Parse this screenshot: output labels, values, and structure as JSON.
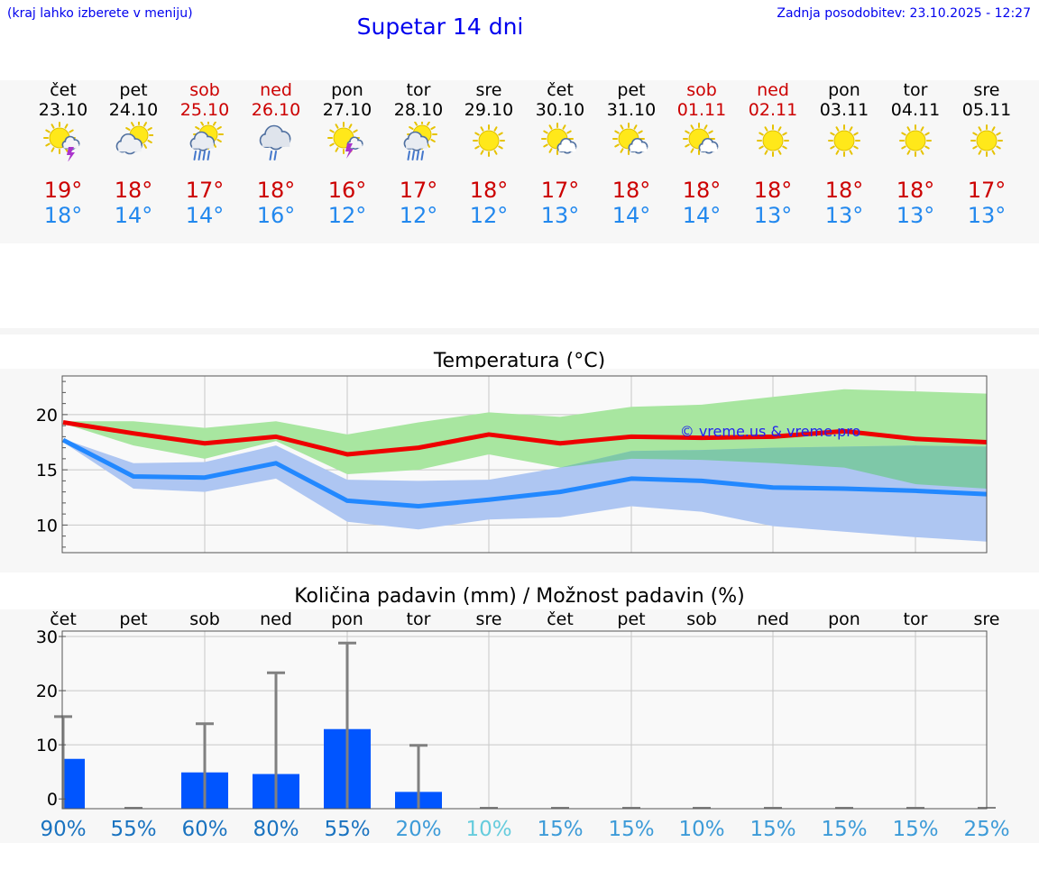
{
  "header": {
    "hint": "(kraj lahko izberete v meniju)",
    "title": "Supetar 14 dni",
    "updated": "Zadnja posodobitev: 23.10.2025 - 12:27"
  },
  "days": [
    {
      "name": "čet",
      "date": "23.10",
      "weekend": false,
      "icon": "sun-cloud-thunder-icon",
      "max": "19°",
      "min": "18°"
    },
    {
      "name": "pet",
      "date": "24.10",
      "weekend": false,
      "icon": "sun-behind-cloud-icon",
      "max": "18°",
      "min": "14°"
    },
    {
      "name": "sob",
      "date": "25.10",
      "weekend": true,
      "icon": "sun-cloud-rain-icon",
      "max": "17°",
      "min": "14°"
    },
    {
      "name": "ned",
      "date": "26.10",
      "weekend": true,
      "icon": "cloud-rain-icon",
      "max": "18°",
      "min": "16°"
    },
    {
      "name": "pon",
      "date": "27.10",
      "weekend": false,
      "icon": "sun-thunder-icon",
      "max": "16°",
      "min": "12°"
    },
    {
      "name": "tor",
      "date": "28.10",
      "weekend": false,
      "icon": "sun-cloud-rain-icon",
      "max": "17°",
      "min": "12°"
    },
    {
      "name": "sre",
      "date": "29.10",
      "weekend": false,
      "icon": "sun-icon",
      "max": "18°",
      "min": "12°"
    },
    {
      "name": "čet",
      "date": "30.10",
      "weekend": false,
      "icon": "sun-small-cloud-icon",
      "max": "17°",
      "min": "13°"
    },
    {
      "name": "pet",
      "date": "31.10",
      "weekend": false,
      "icon": "sun-small-cloud-icon",
      "max": "18°",
      "min": "14°"
    },
    {
      "name": "sob",
      "date": "01.11",
      "weekend": true,
      "icon": "sun-small-cloud-icon",
      "max": "18°",
      "min": "14°"
    },
    {
      "name": "ned",
      "date": "02.11",
      "weekend": true,
      "icon": "sun-icon",
      "max": "18°",
      "min": "13°"
    },
    {
      "name": "pon",
      "date": "03.11",
      "weekend": false,
      "icon": "sun-icon",
      "max": "18°",
      "min": "13°"
    },
    {
      "name": "tor",
      "date": "04.11",
      "weekend": false,
      "icon": "sun-icon",
      "max": "18°",
      "min": "13°"
    },
    {
      "name": "sre",
      "date": "05.11",
      "weekend": false,
      "icon": "sun-icon",
      "max": "17°",
      "min": "13°"
    }
  ],
  "colors": {
    "max_line": "#ee0000",
    "min_line": "#2288ff",
    "max_band": "#a8e6a0",
    "min_band": "#aec6f2",
    "overlap_band": "#7ec8a8",
    "precip_bar": "#0055ff",
    "error_bar": "#808080",
    "prob_high": "#1a73c0",
    "prob_mid": "#3d9bd8",
    "prob_low": "#66ccdd"
  },
  "chart_data": [
    {
      "type": "line",
      "title": "Temperatura (°C)",
      "watermark": "© vreme.us & vreme.pro",
      "x": [
        "23.10",
        "24.10",
        "25.10",
        "26.10",
        "27.10",
        "28.10",
        "29.10",
        "30.10",
        "31.10",
        "01.11",
        "02.11",
        "03.11",
        "04.11",
        "05.11"
      ],
      "ylim": [
        7.5,
        23.5
      ],
      "yticks": [
        10,
        15,
        20
      ],
      "grid": true,
      "series": [
        {
          "role": "max",
          "values": [
            19.3,
            18.3,
            17.4,
            18.0,
            16.4,
            17.0,
            18.2,
            17.4,
            18.0,
            17.9,
            18.0,
            18.5,
            17.8,
            17.5
          ]
        },
        {
          "role": "max_band_high",
          "values": [
            19.4,
            19.4,
            18.8,
            19.4,
            18.2,
            19.3,
            20.2,
            19.8,
            20.7,
            20.9,
            21.6,
            22.3,
            22.1,
            21.9
          ]
        },
        {
          "role": "max_band_low",
          "values": [
            19.2,
            17.2,
            16.0,
            17.6,
            14.6,
            15.0,
            16.4,
            15.2,
            16.0,
            15.9,
            15.6,
            15.2,
            13.7,
            13.3
          ]
        },
        {
          "role": "min",
          "values": [
            17.7,
            14.4,
            14.3,
            15.6,
            12.2,
            11.7,
            12.3,
            13.0,
            14.2,
            14.0,
            13.4,
            13.3,
            13.1,
            12.8
          ]
        },
        {
          "role": "min_band_high",
          "values": [
            17.8,
            15.6,
            15.7,
            17.2,
            14.1,
            14.0,
            14.1,
            15.2,
            16.7,
            16.8,
            17.0,
            17.1,
            17.2,
            17.1
          ]
        },
        {
          "role": "min_band_low",
          "values": [
            17.5,
            13.3,
            13.0,
            14.2,
            10.3,
            9.6,
            10.5,
            10.7,
            11.7,
            11.2,
            9.9,
            9.4,
            8.9,
            8.5
          ]
        }
      ]
    },
    {
      "type": "bar",
      "title": "Količina padavin (mm) / Možnost padavin (%)",
      "categories": [
        "čet",
        "pet",
        "sob",
        "ned",
        "pon",
        "tor",
        "sre",
        "čet",
        "pet",
        "sob",
        "ned",
        "pon",
        "tor",
        "sre"
      ],
      "ylim": [
        -1.8,
        31
      ],
      "yticks": [
        0,
        10,
        20,
        30
      ],
      "grid": true,
      "values": [
        7.4,
        0,
        4.9,
        4.6,
        12.9,
        1.3,
        0,
        0,
        0,
        0,
        0,
        0,
        0,
        0
      ],
      "error_high": [
        15.2,
        0,
        13.9,
        23.3,
        28.8,
        9.9,
        0,
        0,
        0,
        0,
        0,
        0,
        0,
        0
      ],
      "probability_labels": [
        "90%",
        "55%",
        "60%",
        "80%",
        "55%",
        "20%",
        "10%",
        "15%",
        "15%",
        "10%",
        "15%",
        "15%",
        "15%",
        "25%"
      ],
      "probability_levels": [
        "high",
        "high",
        "high",
        "high",
        "high",
        "mid",
        "low",
        "mid",
        "mid",
        "mid",
        "mid",
        "mid",
        "mid",
        "mid"
      ]
    }
  ]
}
